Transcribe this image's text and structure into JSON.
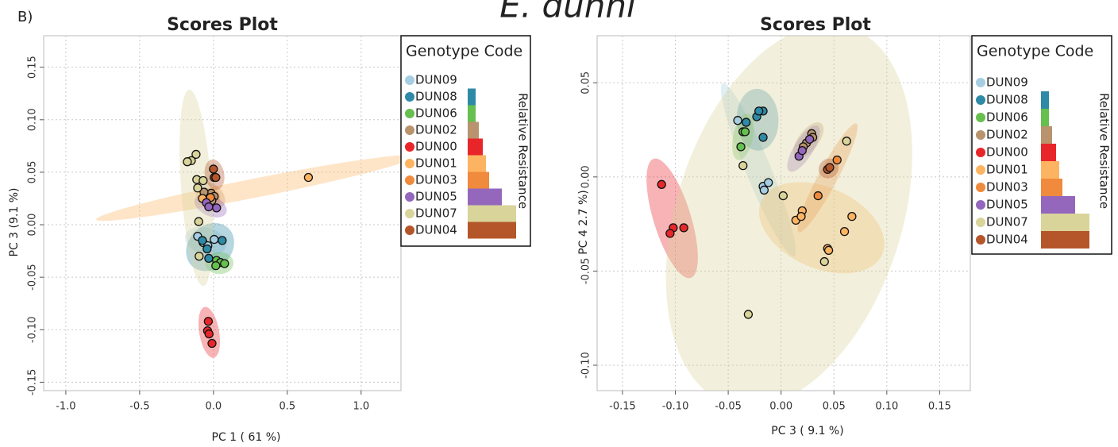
{
  "figure_title": "E. dunni",
  "panel_label": "B)",
  "chart_data": [
    {
      "type": "scatter",
      "title": "Scores Plot",
      "x_label": "PC 1 ( 61 %)",
      "y_label": "PC 3  (9.1 %)",
      "legend_title": "Genotype Code",
      "side_label": "Relative Resistance",
      "grid": true,
      "xlim": [
        -1.15,
        1.27
      ],
      "ylim": [
        -0.158,
        0.18
      ],
      "xticks": [
        {
          "value": -1,
          "label": "-1.0"
        },
        -0.5,
        {
          "value": 0,
          "label": "0.0"
        },
        0.5,
        {
          "value": 1,
          "label": "1.0"
        }
      ],
      "yticks": [
        0.15,
        {
          "value": 0.1,
          "label": "0.10"
        },
        0.05,
        {
          "value": 0,
          "label": "0.00"
        },
        -0.05,
        {
          "value": -0.1,
          "label": "-0.10"
        },
        -0.15
      ],
      "series": [
        {
          "name": "DUN09",
          "color": "#a6cee3",
          "resistance": 0,
          "x": [
            -0.107,
            -0.07,
            -0.038,
            0.005
          ],
          "y": [
            -0.011,
            -0.017,
            -0.02,
            -0.014
          ]
        },
        {
          "name": "DUN08",
          "color": "#2e8aa6",
          "resistance": 1,
          "x": [
            -0.043,
            -0.032,
            0.059,
            -0.075
          ],
          "y": [
            -0.023,
            -0.032,
            -0.015,
            -0.015
          ]
        },
        {
          "name": "DUN06",
          "color": "#66bf4f",
          "resistance": 1,
          "x": [
            0.021,
            0.048,
            0.075,
            0.016
          ],
          "y": [
            -0.034,
            -0.036,
            -0.037,
            -0.039
          ]
        },
        {
          "name": "DUN02",
          "color": "#b8936d",
          "resistance": 1.4,
          "x": [
            -0.016,
            0.005,
            -0.011,
            -0.064
          ],
          "y": [
            0.03,
            0.027,
            0.023,
            0.031
          ]
        },
        {
          "name": "DUN00",
          "color": "#e8262a",
          "resistance": 1.9,
          "x": [
            -0.035,
            -0.04,
            -0.03,
            -0.01
          ],
          "y": [
            -0.092,
            -0.101,
            -0.104,
            -0.113
          ]
        },
        {
          "name": "DUN01",
          "color": "#fdb462",
          "resistance": 2.3,
          "x": [
            0.643,
            -0.075
          ],
          "y": [
            0.045,
            0.025
          ]
        },
        {
          "name": "DUN03",
          "color": "#f08a3c",
          "resistance": 2.7,
          "x": [
            -0.02
          ],
          "y": [
            0.026
          ]
        },
        {
          "name": "DUN05",
          "color": "#9467bd",
          "resistance": 4.3,
          "x": [
            -0.048,
            -0.032,
            0.021
          ],
          "y": [
            0.021,
            0.017,
            0.016
          ]
        },
        {
          "name": "DUN07",
          "color": "#d9d49a",
          "resistance": 6.1,
          "x": [
            -0.118,
            -0.15,
            -0.177,
            -0.113,
            -0.107,
            -0.07,
            -0.1,
            -0.097
          ],
          "y": [
            0.067,
            0.061,
            0.06,
            0.043,
            0.035,
            0.042,
            0.003,
            -0.03
          ]
        },
        {
          "name": "DUN04",
          "color": "#b5562a",
          "resistance": 6.1,
          "x": [
            0,
            0.005,
            0.016
          ],
          "y": [
            0.053,
            0.045,
            0.045
          ]
        }
      ]
    },
    {
      "type": "scatter",
      "title": "Scores Plot",
      "x_label": "PC 3 ( 9.1 %)",
      "y_label": "PC 4  2.7 %)",
      "legend_title": "Genotype Code",
      "side_label": "Relative Resistance",
      "grid": true,
      "xlim": [
        -0.174,
        0.179
      ],
      "ylim": [
        -0.1135,
        0.075
      ],
      "xticks": [
        -0.15,
        {
          "value": -0.1,
          "label": "-0.10"
        },
        -0.05,
        {
          "value": 0,
          "label": "0.00"
        },
        0.05,
        {
          "value": 0.1,
          "label": "0.10"
        },
        0.15
      ],
      "yticks": [
        0.05,
        {
          "value": 0,
          "label": "0.00"
        },
        -0.05,
        {
          "value": -0.1,
          "label": "-0.10"
        }
      ],
      "series": [
        {
          "name": "DUN09",
          "color": "#a6cee3",
          "resistance": 0,
          "x": [
            -0.041,
            -0.017,
            -0.016,
            -0.012
          ],
          "y": [
            0.03,
            -0.005,
            -0.007,
            -0.003
          ]
        },
        {
          "name": "DUN08",
          "color": "#2e8aa6",
          "resistance": 1,
          "x": [
            -0.033,
            -0.023,
            -0.017,
            -0.021,
            -0.017
          ],
          "y": [
            0.029,
            0.032,
            0.035,
            0.035,
            0.021
          ]
        },
        {
          "name": "DUN06",
          "color": "#66bf4f",
          "resistance": 1,
          "x": [
            -0.036,
            -0.034,
            -0.038
          ],
          "y": [
            0.024,
            0.024,
            0.016
          ]
        },
        {
          "name": "DUN02",
          "color": "#b8936d",
          "resistance": 1.4,
          "x": [
            0.024,
            0.029,
            0.03,
            0.021
          ],
          "y": [
            0.018,
            0.023,
            0.021,
            0.016
          ]
        },
        {
          "name": "DUN00",
          "color": "#e8262a",
          "resistance": 1.9,
          "x": [
            -0.113,
            -0.102,
            -0.105,
            -0.092
          ],
          "y": [
            -0.004,
            -0.027,
            -0.03,
            -0.027
          ]
        },
        {
          "name": "DUN01",
          "color": "#fdb462",
          "resistance": 2.3,
          "x": [
            0.014,
            0.02,
            0.019,
            0.067,
            0.06,
            0.044,
            0.045
          ],
          "y": [
            -0.023,
            -0.018,
            -0.021,
            -0.021,
            -0.029,
            -0.038,
            -0.039
          ]
        },
        {
          "name": "DUN03",
          "color": "#f08a3c",
          "resistance": 2.7,
          "x": [
            0.053,
            0.035
          ],
          "y": [
            0.009,
            -0.01
          ]
        },
        {
          "name": "DUN05",
          "color": "#9467bd",
          "resistance": 4.3,
          "x": [
            0.017,
            0.02,
            0.027
          ],
          "y": [
            0.011,
            0.014,
            0.02
          ]
        },
        {
          "name": "DUN07",
          "color": "#d9d49a",
          "resistance": 6.1,
          "x": [
            -0.036,
            0.002,
            -0.031,
            0.041,
            0.062
          ],
          "y": [
            0.006,
            -0.01,
            -0.073,
            -0.045,
            0.019
          ]
        },
        {
          "name": "DUN04",
          "color": "#b5562a",
          "resistance": 6.1,
          "x": [
            0.044,
            0.046
          ],
          "y": [
            0.004,
            0.005
          ]
        }
      ]
    }
  ]
}
